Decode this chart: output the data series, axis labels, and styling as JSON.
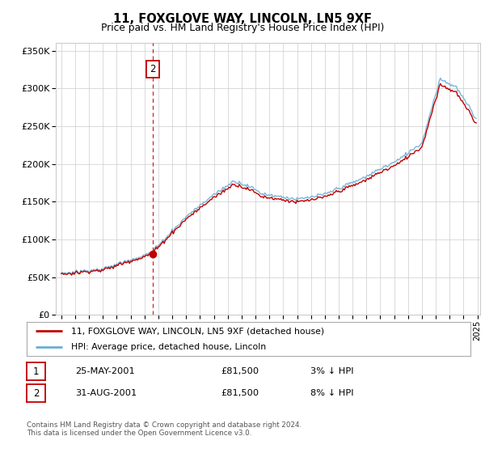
{
  "title": "11, FOXGLOVE WAY, LINCOLN, LN5 9XF",
  "subtitle": "Price paid vs. HM Land Registry's House Price Index (HPI)",
  "ylim": [
    0,
    360000
  ],
  "yticks": [
    0,
    50000,
    100000,
    150000,
    200000,
    250000,
    300000,
    350000
  ],
  "hpi_color": "#6baed6",
  "price_color": "#c00000",
  "transaction2_year": 2001,
  "transaction2_month": 8,
  "transaction2_price": 81500,
  "transaction1_year": 2001,
  "transaction1_month": 5,
  "transaction1_price": 81500,
  "legend_label_price": "11, FOXGLOVE WAY, LINCOLN, LN5 9XF (detached house)",
  "legend_label_hpi": "HPI: Average price, detached house, Lincoln",
  "table_row1": [
    "1",
    "25-MAY-2001",
    "£81,500",
    "3% ↓ HPI"
  ],
  "table_row2": [
    "2",
    "31-AUG-2001",
    "£81,500",
    "8% ↓ HPI"
  ],
  "footer": "Contains HM Land Registry data © Crown copyright and database right 2024.\nThis data is licensed under the Open Government Licence v3.0.",
  "grid_color": "#cccccc",
  "background_color": "#ffffff",
  "annotation_box_color": "#c00000"
}
